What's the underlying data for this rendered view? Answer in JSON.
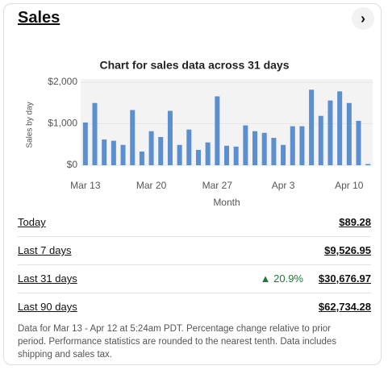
{
  "header": {
    "title": "Sales"
  },
  "chart": {
    "type": "bar",
    "title": "Chart for sales data across 31 days",
    "y_label": "Sales by day",
    "x_label": "Month",
    "categories": [
      "Mar 13",
      null,
      null,
      null,
      null,
      null,
      null,
      "Mar 20",
      null,
      null,
      null,
      null,
      null,
      null,
      "Mar 27",
      null,
      null,
      null,
      null,
      null,
      null,
      "Apr 3",
      null,
      null,
      null,
      null,
      null,
      null,
      "Apr 10",
      null,
      null
    ],
    "values": [
      1030,
      1500,
      620,
      590,
      490,
      1330,
      330,
      820,
      680,
      1310,
      490,
      860,
      370,
      550,
      1660,
      470,
      450,
      960,
      820,
      780,
      660,
      490,
      940,
      940,
      1820,
      1190,
      1560,
      1780,
      1500,
      1070,
      30
    ],
    "color": "#5b8fd0",
    "ylim": [
      0,
      2000
    ],
    "yticks": [
      {
        "value": 0,
        "label": "$0"
      },
      {
        "value": 1000,
        "label": "$1,000"
      },
      {
        "value": 2000,
        "label": "$2,000"
      }
    ]
  },
  "table": {
    "rows": [
      {
        "label": "Today",
        "value": "$89.28"
      },
      {
        "label": "Last 7 days",
        "value": "$9,526.95"
      },
      {
        "label": "Last 31 days",
        "change": "20.9%",
        "value": "$30,676.97"
      },
      {
        "label": "Last 90 days",
        "value": "$62,734.28"
      }
    ]
  },
  "footnote": "Data for Mar 13 - Apr 12 at 5:24am PDT. Percentage change relative to prior period. Performance statistics are rounded to the nearest tenth. Data includes shipping and sales tax."
}
